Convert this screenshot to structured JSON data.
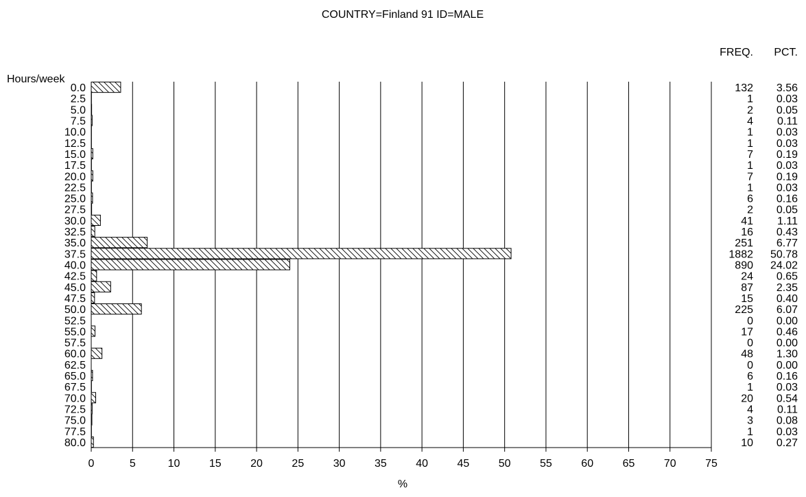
{
  "chart_data": {
    "type": "bar",
    "orientation": "horizontal",
    "title": "COUNTRY=Finland 91 ID=MALE",
    "ylabel": "Hours/week",
    "xlabel": "%",
    "xlim": [
      0,
      75
    ],
    "xticks": [
      "0",
      "5",
      "10",
      "15",
      "20",
      "25",
      "30",
      "35",
      "40",
      "45",
      "50",
      "55",
      "60",
      "65",
      "70",
      "75"
    ],
    "grid": "vertical",
    "fill_pattern": "diagonal-hatch",
    "freq_header": "FREQ.",
    "pct_header": "PCT.",
    "categories": [
      "0.0",
      "2.5",
      "5.0",
      "7.5",
      "10.0",
      "12.5",
      "15.0",
      "17.5",
      "20.0",
      "22.5",
      "25.0",
      "27.5",
      "30.0",
      "32.5",
      "35.0",
      "37.5",
      "40.0",
      "42.5",
      "45.0",
      "47.5",
      "50.0",
      "52.5",
      "55.0",
      "57.5",
      "60.0",
      "62.5",
      "65.0",
      "67.5",
      "70.0",
      "72.5",
      "75.0",
      "77.5",
      "80.0"
    ],
    "values": [
      3.56,
      0.03,
      0.05,
      0.11,
      0.03,
      0.03,
      0.19,
      0.03,
      0.19,
      0.03,
      0.16,
      0.05,
      1.11,
      0.43,
      6.77,
      50.78,
      24.02,
      0.65,
      2.35,
      0.4,
      6.07,
      0.0,
      0.46,
      0.0,
      1.3,
      0.0,
      0.16,
      0.03,
      0.54,
      0.11,
      0.08,
      0.03,
      0.27
    ],
    "freq": [
      "132",
      "1",
      "2",
      "4",
      "1",
      "1",
      "7",
      "1",
      "7",
      "1",
      "6",
      "2",
      "41",
      "16",
      "251",
      "1882",
      "890",
      "24",
      "87",
      "15",
      "225",
      "0",
      "17",
      "0",
      "48",
      "0",
      "6",
      "1",
      "20",
      "4",
      "3",
      "1",
      "10"
    ],
    "pct": [
      "3.56",
      "0.03",
      "0.05",
      "0.11",
      "0.03",
      "0.03",
      "0.19",
      "0.03",
      "0.19",
      "0.03",
      "0.16",
      "0.05",
      "1.11",
      "0.43",
      "6.77",
      "50.78",
      "24.02",
      "0.65",
      "2.35",
      "0.40",
      "6.07",
      "0.00",
      "0.46",
      "0.00",
      "1.30",
      "0.00",
      "0.16",
      "0.03",
      "0.54",
      "0.11",
      "0.08",
      "0.03",
      "0.27"
    ]
  }
}
